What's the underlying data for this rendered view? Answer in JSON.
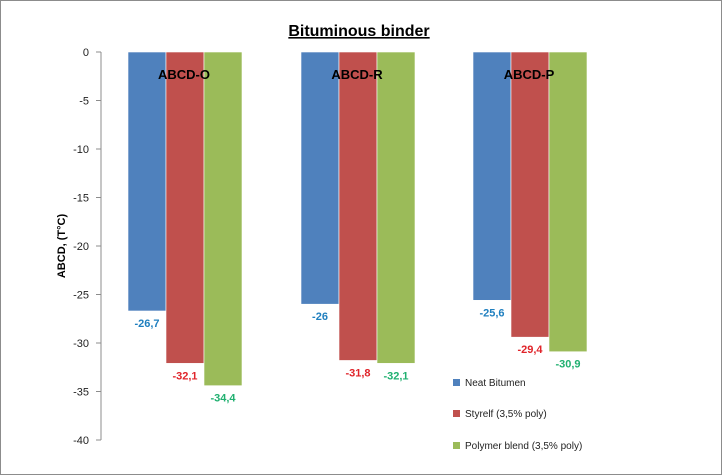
{
  "chart_data": {
    "type": "bar",
    "title": "Bituminous binder",
    "ylabel": "ABCD, (T°C)",
    "xlabel": "",
    "ylim": [
      -40,
      0
    ],
    "yticks": [
      0,
      -5,
      -10,
      -15,
      -20,
      -25,
      -30,
      -35,
      -40
    ],
    "grid": false,
    "legend_position": "bottom-right",
    "categories": [
      "ABCD-O",
      "ABCD-R",
      "ABCD-P"
    ],
    "series": [
      {
        "name": "Neat Bitumen",
        "color": "#4f81bd",
        "label_color": "#1f7fbf",
        "values": [
          -26.7,
          -26,
          -25.6
        ],
        "labels": [
          "-26,7",
          "-26",
          "-25,6"
        ]
      },
      {
        "name": "Styrelf (3,5% poly)",
        "color": "#c0504d",
        "label_color": "#e0242a",
        "values": [
          -32.1,
          -31.8,
          -29.4
        ],
        "labels": [
          "-32,1",
          "-31,8",
          "-29,4"
        ]
      },
      {
        "name": "Polymer blend (3,5% poly)",
        "color": "#9bbb59",
        "label_color": "#20b070",
        "values": [
          -34.4,
          -32.1,
          -30.9
        ],
        "labels": [
          "-34,4",
          "-32,1",
          "-30,9"
        ]
      }
    ]
  }
}
